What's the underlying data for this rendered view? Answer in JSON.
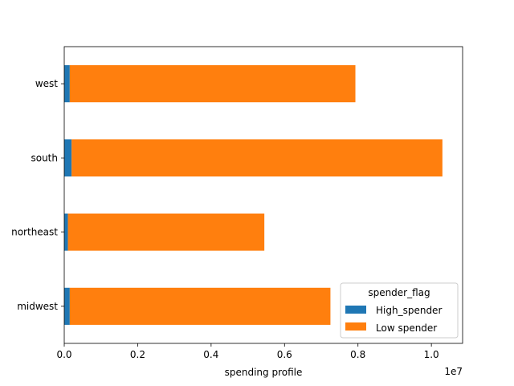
{
  "chart_data": {
    "type": "bar",
    "orientation": "horizontal",
    "stacked": true,
    "categories": [
      "midwest",
      "northeast",
      "south",
      "west"
    ],
    "series": [
      {
        "name": "High_spender",
        "values": [
          150000,
          100000,
          200000,
          150000
        ],
        "color": "#1f77b4"
      },
      {
        "name": "Low spender",
        "values": [
          7100000,
          5350000,
          10100000,
          7780000
        ],
        "color": "#ff7f0e"
      }
    ],
    "xlabel": "spending profile",
    "ylabel": "",
    "xlim": [
      0,
      10850000
    ],
    "xticks": [
      0,
      2000000,
      4000000,
      6000000,
      8000000,
      10000000
    ],
    "xtick_labels": [
      "0.0",
      "0.2",
      "0.4",
      "0.6",
      "0.8",
      "1.0"
    ],
    "x_offset_label": "1e7",
    "legend": {
      "title": "spender_flag",
      "position": "lower-right"
    },
    "grid": false
  }
}
